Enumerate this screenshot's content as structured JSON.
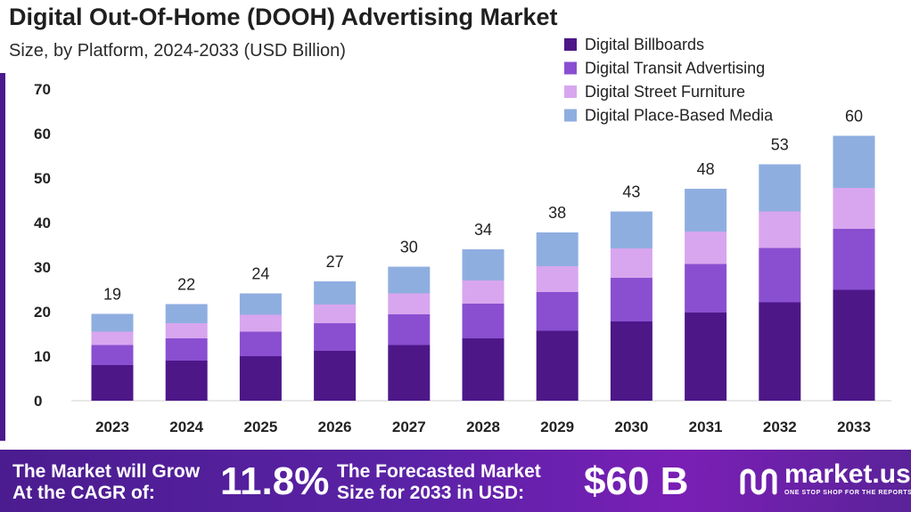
{
  "header": {
    "title": "Digital Out-Of-Home (DOOH) Advertising Market",
    "subtitle": "Size, by Platform, 2024-2033 (USD Billion)"
  },
  "chart_data": {
    "type": "bar",
    "stacked": true,
    "title": "Digital Out-Of-Home (DOOH) Advertising Market",
    "subtitle": "Size, by Platform, 2024-2033 (USD Billion)",
    "xlabel": "",
    "ylabel": "",
    "ylim": [
      0,
      70
    ],
    "yticks": [
      0,
      10,
      20,
      30,
      40,
      50,
      60,
      70
    ],
    "grid": false,
    "legend_position": "top-right",
    "categories": [
      "2023",
      "2024",
      "2025",
      "2026",
      "2027",
      "2028",
      "2029",
      "2030",
      "2031",
      "2032",
      "2033"
    ],
    "totals": [
      "19",
      "22",
      "24",
      "27",
      "30",
      "34",
      "38",
      "43",
      "48",
      "53",
      "60"
    ],
    "series": [
      {
        "name": "Digital Billboards",
        "color": "#4d1788",
        "values": [
          8.0,
          9.0,
          10.0,
          11.2,
          12.5,
          14.0,
          15.7,
          17.8,
          19.8,
          22.1,
          24.9
        ]
      },
      {
        "name": "Digital Transit Advertising",
        "color": "#8a4fd0",
        "values": [
          4.5,
          5.0,
          5.5,
          6.2,
          6.9,
          7.8,
          8.7,
          9.8,
          10.9,
          12.2,
          13.7
        ]
      },
      {
        "name": "Digital Street Furniture",
        "color": "#d8a6ee",
        "values": [
          3.0,
          3.4,
          3.8,
          4.2,
          4.7,
          5.2,
          5.8,
          6.6,
          7.3,
          8.2,
          9.2
        ]
      },
      {
        "name": "Digital Place-Based Media",
        "color": "#8faee0",
        "values": [
          4.0,
          4.3,
          4.8,
          5.2,
          6.0,
          7.0,
          7.6,
          8.3,
          9.6,
          10.6,
          11.7
        ]
      }
    ]
  },
  "footer": {
    "growth_line1": "The Market will Grow",
    "growth_line2": "At the CAGR of:",
    "cagr": "11.8%",
    "forecast_line1": "The Forecasted Market",
    "forecast_line2": "Size for 2033 in USD:",
    "forecast_value": "$60 B",
    "brand": "market.us",
    "tagline": "ONE STOP SHOP FOR THE REPORTS"
  }
}
